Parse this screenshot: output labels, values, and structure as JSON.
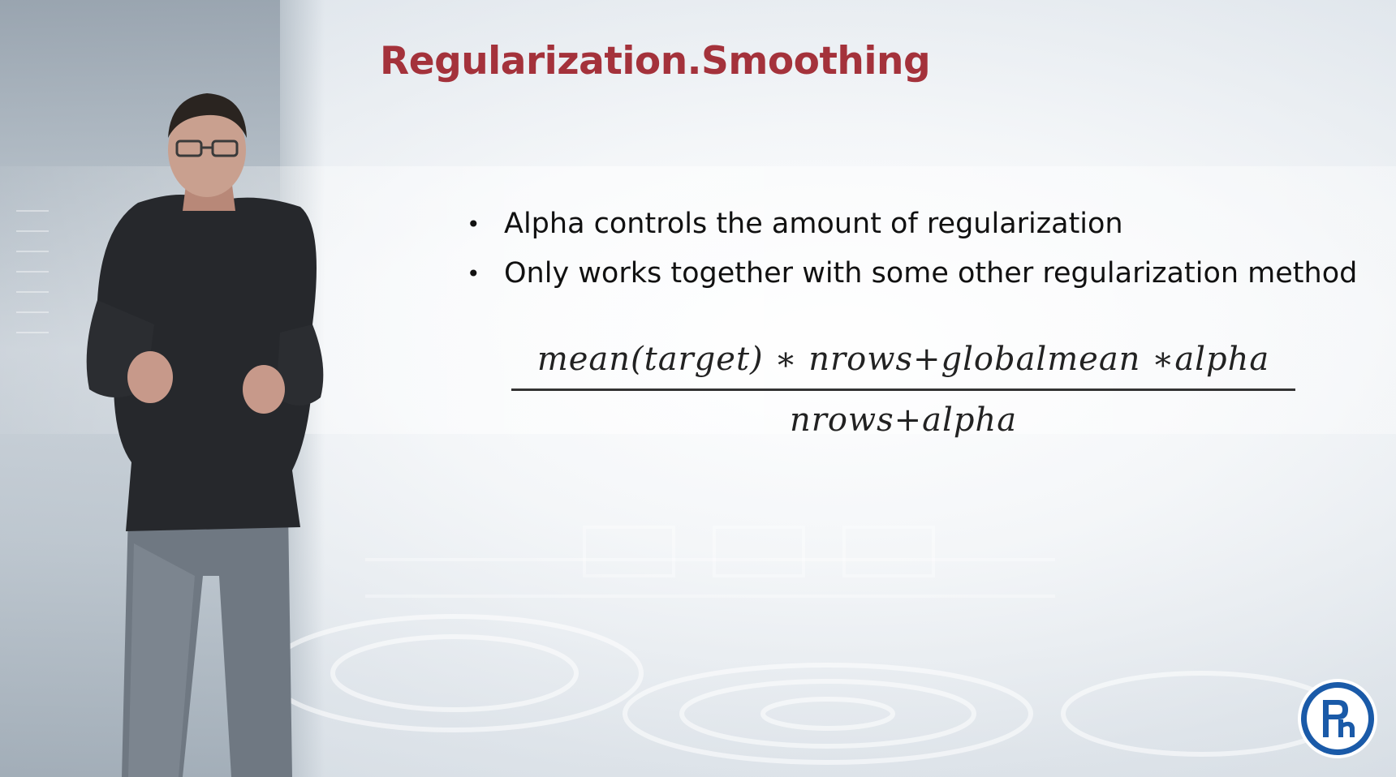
{
  "slide": {
    "title": "Regularization.Smoothing",
    "title_color": "#a4323b",
    "bullets": [
      "Alpha controls the amount of regularization",
      "Only works together with some other regularization method"
    ],
    "bullet_glyph": "•",
    "formula": {
      "numerator": "mean(target) ∗ nrows+globalmean ∗alpha",
      "denominator": "nrows+alpha"
    }
  },
  "logo": {
    "name": "university-logo",
    "colors": {
      "ring": "#1a5aa8",
      "fill": "#ffffff"
    }
  },
  "presenter": {
    "name": "presenter-video"
  }
}
